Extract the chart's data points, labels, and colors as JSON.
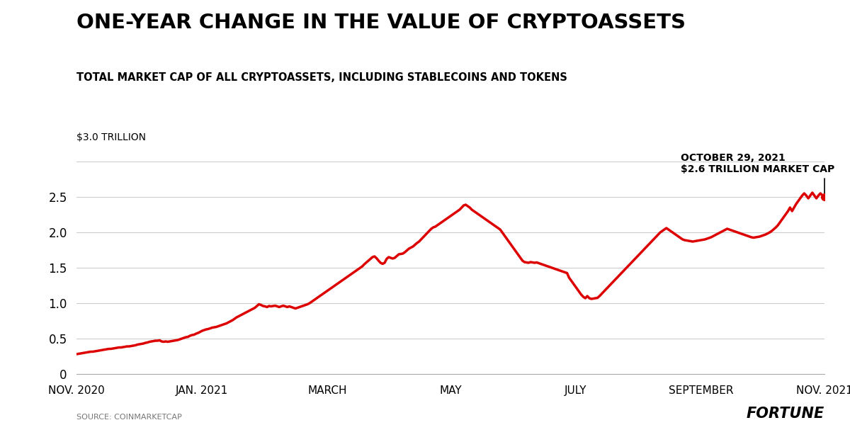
{
  "title": "ONE-YEAR CHANGE IN THE VALUE OF CRYPTOASSETS",
  "subtitle": "TOTAL MARKET CAP OF ALL CRYPTOASSETS, INCLUDING STABLECOINS AND TOKENS",
  "ylabel_text": "$3.0 TRILLION",
  "annotation_line1": "OCTOBER 29, 2021",
  "annotation_line2": "$2.6 TRILLION MARKET CAP",
  "source_text": "SOURCE: COINMARKETCAP",
  "fortune_text": "FORTUNE",
  "line_color": "#dd0000",
  "background_color": "#ffffff",
  "ytick_values": [
    0,
    0.5,
    1.0,
    1.5,
    2.0,
    2.5
  ],
  "ytick_labels": [
    "0",
    "0.5",
    "1.0",
    "1.5",
    "2.0",
    "2.5"
  ],
  "ylim": [
    0,
    3.0
  ],
  "x_tick_labels": [
    "NOV. 2020",
    "JAN. 2021",
    "MARCH",
    "MAY",
    "JULY",
    "SEPTEMBER",
    "NOV. 2021"
  ],
  "x_tick_positions": [
    0,
    61,
    122,
    182,
    243,
    304,
    364
  ],
  "series": [
    0.28,
    0.285,
    0.29,
    0.295,
    0.3,
    0.305,
    0.31,
    0.315,
    0.315,
    0.32,
    0.325,
    0.33,
    0.335,
    0.34,
    0.345,
    0.35,
    0.355,
    0.355,
    0.36,
    0.365,
    0.37,
    0.375,
    0.375,
    0.38,
    0.385,
    0.39,
    0.39,
    0.395,
    0.4,
    0.405,
    0.415,
    0.42,
    0.425,
    0.43,
    0.44,
    0.445,
    0.455,
    0.46,
    0.465,
    0.47,
    0.47,
    0.475,
    0.46,
    0.455,
    0.46,
    0.455,
    0.46,
    0.465,
    0.47,
    0.475,
    0.48,
    0.49,
    0.5,
    0.51,
    0.52,
    0.525,
    0.54,
    0.55,
    0.555,
    0.57,
    0.58,
    0.595,
    0.61,
    0.62,
    0.63,
    0.635,
    0.645,
    0.655,
    0.66,
    0.665,
    0.675,
    0.685,
    0.695,
    0.705,
    0.715,
    0.73,
    0.745,
    0.76,
    0.78,
    0.8,
    0.815,
    0.83,
    0.845,
    0.86,
    0.875,
    0.89,
    0.905,
    0.92,
    0.935,
    0.96,
    0.985,
    0.975,
    0.96,
    0.955,
    0.945,
    0.96,
    0.955,
    0.96,
    0.965,
    0.955,
    0.945,
    0.955,
    0.965,
    0.955,
    0.945,
    0.955,
    0.945,
    0.935,
    0.925,
    0.935,
    0.945,
    0.955,
    0.965,
    0.975,
    0.985,
    1.0,
    1.02,
    1.04,
    1.06,
    1.08,
    1.1,
    1.12,
    1.14,
    1.16,
    1.18,
    1.2,
    1.22,
    1.24,
    1.26,
    1.28,
    1.3,
    1.32,
    1.34,
    1.36,
    1.38,
    1.4,
    1.42,
    1.44,
    1.46,
    1.48,
    1.5,
    1.52,
    1.55,
    1.575,
    1.6,
    1.625,
    1.65,
    1.66,
    1.635,
    1.6,
    1.57,
    1.555,
    1.57,
    1.625,
    1.65,
    1.64,
    1.63,
    1.64,
    1.665,
    1.69,
    1.695,
    1.7,
    1.72,
    1.745,
    1.77,
    1.785,
    1.8,
    1.825,
    1.85,
    1.87,
    1.9,
    1.93,
    1.96,
    1.99,
    2.02,
    2.05,
    2.07,
    2.08,
    2.1,
    2.12,
    2.14,
    2.16,
    2.18,
    2.2,
    2.22,
    2.24,
    2.26,
    2.28,
    2.3,
    2.32,
    2.35,
    2.38,
    2.39,
    2.37,
    2.35,
    2.32,
    2.3,
    2.28,
    2.26,
    2.24,
    2.22,
    2.2,
    2.18,
    2.16,
    2.14,
    2.12,
    2.1,
    2.08,
    2.06,
    2.04,
    2.0,
    1.96,
    1.92,
    1.88,
    1.84,
    1.8,
    1.76,
    1.72,
    1.68,
    1.64,
    1.6,
    1.58,
    1.575,
    1.57,
    1.58,
    1.575,
    1.57,
    1.575,
    1.565,
    1.555,
    1.545,
    1.535,
    1.525,
    1.515,
    1.505,
    1.495,
    1.485,
    1.475,
    1.465,
    1.455,
    1.445,
    1.435,
    1.425,
    1.36,
    1.32,
    1.28,
    1.24,
    1.2,
    1.16,
    1.12,
    1.09,
    1.07,
    1.1,
    1.07,
    1.06,
    1.065,
    1.07,
    1.075,
    1.1,
    1.13,
    1.16,
    1.19,
    1.22,
    1.25,
    1.28,
    1.31,
    1.34,
    1.37,
    1.4,
    1.43,
    1.46,
    1.49,
    1.52,
    1.55,
    1.58,
    1.61,
    1.64,
    1.67,
    1.7,
    1.73,
    1.76,
    1.79,
    1.82,
    1.85,
    1.88,
    1.91,
    1.94,
    1.97,
    2.0,
    2.02,
    2.04,
    2.06,
    2.04,
    2.02,
    2.0,
    1.98,
    1.96,
    1.94,
    1.92,
    1.9,
    1.89,
    1.885,
    1.88,
    1.875,
    1.87,
    1.875,
    1.88,
    1.885,
    1.89,
    1.895,
    1.9,
    1.91,
    1.92,
    1.93,
    1.945,
    1.96,
    1.975,
    1.99,
    2.005,
    2.02,
    2.035,
    2.05,
    2.04,
    2.03,
    2.02,
    2.01,
    2.0,
    1.99,
    1.98,
    1.97,
    1.96,
    1.95,
    1.94,
    1.93,
    1.925,
    1.93,
    1.935,
    1.94,
    1.95,
    1.96,
    1.97,
    1.985,
    2.0,
    2.02,
    2.045,
    2.07,
    2.1,
    2.14,
    2.18,
    2.22,
    2.26,
    2.3,
    2.35,
    2.3,
    2.35,
    2.4,
    2.44,
    2.48,
    2.52,
    2.55,
    2.52,
    2.48,
    2.52,
    2.56,
    2.52,
    2.48,
    2.52,
    2.55,
    2.52,
    2.5
  ]
}
